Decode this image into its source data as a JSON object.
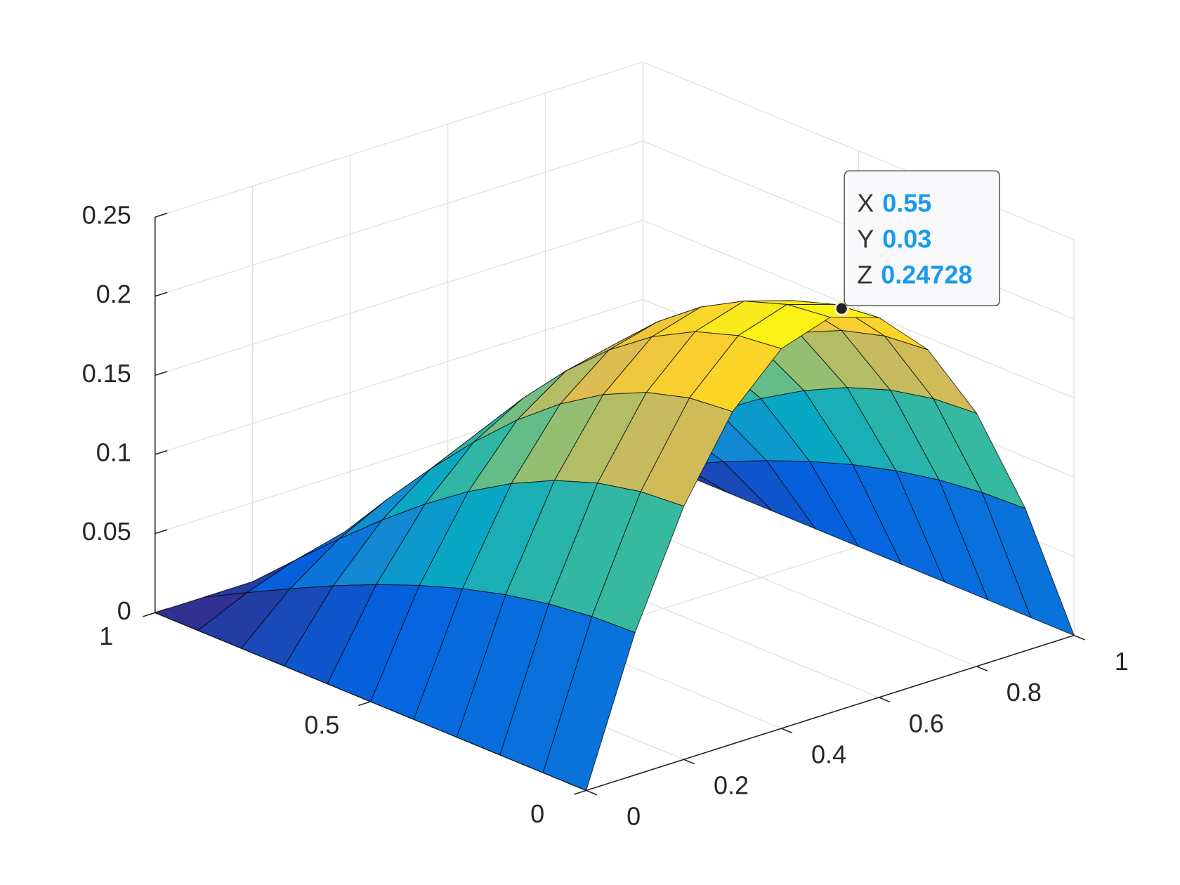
{
  "chart_data": {
    "type": "surface",
    "colormap": "parula",
    "x": [
      0,
      0.1,
      0.2,
      0.3,
      0.4,
      0.5,
      0.6,
      0.7,
      0.8,
      0.9,
      1
    ],
    "y": [
      0,
      0.1,
      0.2,
      0.3,
      0.4,
      0.5,
      0.6,
      0.7,
      0.8,
      0.9,
      1
    ],
    "z": [
      [
        0,
        0.09,
        0.16,
        0.21,
        0.24,
        0.25,
        0.24,
        0.21,
        0.16,
        0.09,
        0
      ],
      [
        0,
        0.0889,
        0.158,
        0.2074,
        0.237,
        0.2469,
        0.237,
        0.2074,
        0.158,
        0.0889,
        0
      ],
      [
        0,
        0.0856,
        0.1522,
        0.1997,
        0.2283,
        0.2378,
        0.2283,
        0.1997,
        0.1522,
        0.0856,
        0
      ],
      [
        0,
        0.0802,
        0.1426,
        0.1871,
        0.2138,
        0.2228,
        0.2138,
        0.1871,
        0.1426,
        0.0802,
        0
      ],
      [
        0,
        0.0728,
        0.1294,
        0.1699,
        0.1942,
        0.2023,
        0.1942,
        0.1699,
        0.1294,
        0.0728,
        0
      ],
      [
        0,
        0.0636,
        0.1131,
        0.1485,
        0.1697,
        0.1768,
        0.1697,
        0.1485,
        0.1131,
        0.0636,
        0
      ],
      [
        0,
        0.0529,
        0.094,
        0.1234,
        0.1411,
        0.147,
        0.1411,
        0.1234,
        0.094,
        0.0529,
        0
      ],
      [
        0,
        0.0409,
        0.0726,
        0.0953,
        0.109,
        0.1135,
        0.109,
        0.0953,
        0.0726,
        0.0409,
        0
      ],
      [
        0,
        0.0278,
        0.0494,
        0.0649,
        0.0742,
        0.0773,
        0.0742,
        0.0649,
        0.0494,
        0.0278,
        0
      ],
      [
        0,
        0.0141,
        0.025,
        0.0328,
        0.0375,
        0.0391,
        0.0375,
        0.0328,
        0.025,
        0.0141,
        0
      ],
      [
        0,
        0,
        0,
        0,
        0,
        0,
        0,
        0,
        0,
        0,
        0
      ]
    ],
    "xlim": [
      0,
      1
    ],
    "ylim": [
      0,
      1
    ],
    "zlim": [
      0,
      0.25
    ],
    "xticks": [
      0,
      0.2,
      0.4,
      0.6,
      0.8,
      1
    ],
    "yticks": [
      0,
      0.5,
      1
    ],
    "zticks": [
      0,
      0.05,
      0.1,
      0.15,
      0.2,
      0.25
    ],
    "grid": true,
    "datatip": {
      "labels": [
        "X",
        "Y",
        "Z"
      ],
      "x": 0.55,
      "y": 0.03,
      "z": 0.24728
    }
  }
}
